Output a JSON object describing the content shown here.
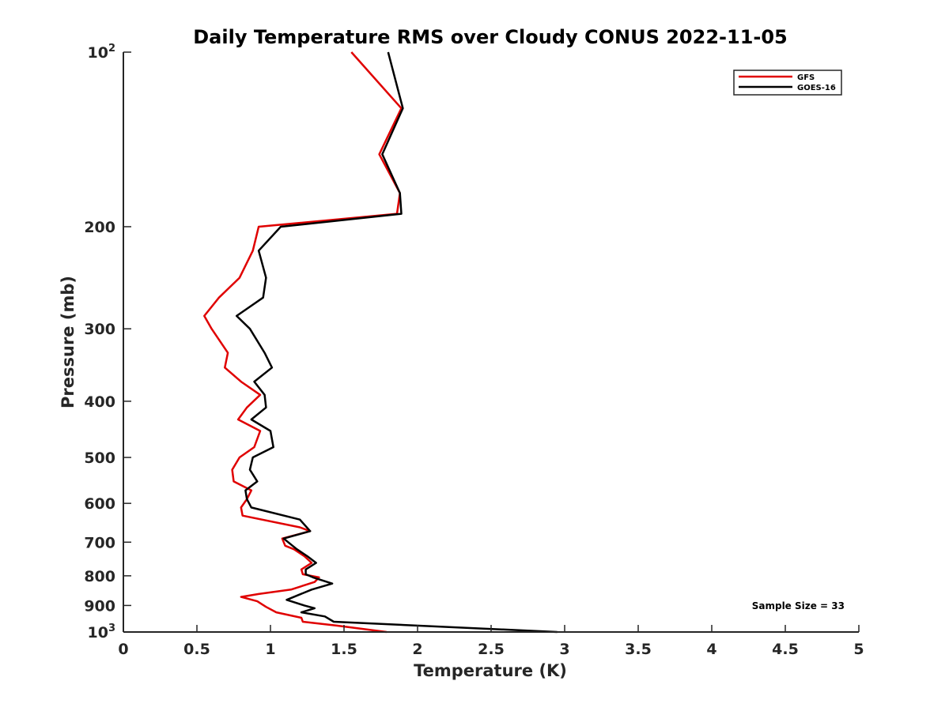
{
  "chart_data": {
    "type": "line",
    "title": "Daily Temperature RMS over Cloudy CONUS 2022-11-05",
    "xlabel": "Temperature (K)",
    "ylabel": "Pressure (mb)",
    "xlim": [
      0,
      5
    ],
    "ylim": [
      100,
      1000
    ],
    "y_scale": "log",
    "y_reversed": true,
    "grid": false,
    "legend_position": "top-right",
    "x_ticks": [
      0,
      0.5,
      1,
      1.5,
      2,
      2.5,
      3,
      3.5,
      4,
      4.5,
      5
    ],
    "x_tick_labels": [
      "0",
      "0.5",
      "1",
      "1.5",
      "2",
      "2.5",
      "3",
      "3.5",
      "4",
      "4.5",
      "5"
    ],
    "y_ticks": [
      {
        "value": 100,
        "base": "10",
        "exp": "2"
      },
      {
        "value": 200,
        "label": "200"
      },
      {
        "value": 300,
        "label": "300"
      },
      {
        "value": 400,
        "label": "400"
      },
      {
        "value": 500,
        "label": "500"
      },
      {
        "value": 600,
        "label": "600"
      },
      {
        "value": 700,
        "label": "700"
      },
      {
        "value": 800,
        "label": "800"
      },
      {
        "value": 900,
        "label": "900"
      },
      {
        "value": 1000,
        "base": "10",
        "exp": "3"
      }
    ],
    "annotation": "Sample Size = 33",
    "series": [
      {
        "name": "GFS",
        "color": "#e00000",
        "points": [
          [
            1.55,
            100
          ],
          [
            1.89,
            125
          ],
          [
            1.74,
            150
          ],
          [
            1.88,
            175
          ],
          [
            1.86,
            190
          ],
          [
            0.92,
            200
          ],
          [
            0.88,
            220
          ],
          [
            0.79,
            245
          ],
          [
            0.65,
            265
          ],
          [
            0.55,
            285
          ],
          [
            0.6,
            300
          ],
          [
            0.71,
            330
          ],
          [
            0.69,
            350
          ],
          [
            0.8,
            370
          ],
          [
            0.93,
            390
          ],
          [
            0.84,
            410
          ],
          [
            0.78,
            430
          ],
          [
            0.93,
            450
          ],
          [
            0.89,
            480
          ],
          [
            0.79,
            500
          ],
          [
            0.74,
            525
          ],
          [
            0.75,
            550
          ],
          [
            0.87,
            570
          ],
          [
            0.84,
            590
          ],
          [
            0.8,
            610
          ],
          [
            0.81,
            630
          ],
          [
            1.2,
            660
          ],
          [
            1.27,
            670
          ],
          [
            1.08,
            690
          ],
          [
            1.1,
            710
          ],
          [
            1.16,
            720
          ],
          [
            1.23,
            740
          ],
          [
            1.28,
            760
          ],
          [
            1.21,
            780
          ],
          [
            1.22,
            795
          ],
          [
            1.33,
            805
          ],
          [
            1.3,
            820
          ],
          [
            1.14,
            845
          ],
          [
            0.92,
            860
          ],
          [
            0.8,
            870
          ],
          [
            0.91,
            885
          ],
          [
            0.97,
            905
          ],
          [
            1.04,
            925
          ],
          [
            1.21,
            945
          ],
          [
            1.22,
            960
          ],
          [
            1.45,
            975
          ],
          [
            1.79,
            1000
          ]
        ]
      },
      {
        "name": "GOES-16",
        "color": "#000000",
        "points": [
          [
            1.8,
            100
          ],
          [
            1.9,
            125
          ],
          [
            1.76,
            150
          ],
          [
            1.88,
            175
          ],
          [
            1.89,
            190
          ],
          [
            1.07,
            200
          ],
          [
            0.92,
            220
          ],
          [
            0.97,
            245
          ],
          [
            0.95,
            265
          ],
          [
            0.77,
            285
          ],
          [
            0.86,
            300
          ],
          [
            0.96,
            330
          ],
          [
            1.01,
            350
          ],
          [
            0.89,
            370
          ],
          [
            0.96,
            390
          ],
          [
            0.97,
            410
          ],
          [
            0.87,
            430
          ],
          [
            1.0,
            450
          ],
          [
            1.02,
            480
          ],
          [
            0.88,
            500
          ],
          [
            0.86,
            525
          ],
          [
            0.91,
            550
          ],
          [
            0.83,
            570
          ],
          [
            0.84,
            590
          ],
          [
            0.87,
            610
          ],
          [
            1.2,
            640
          ],
          [
            1.27,
            670
          ],
          [
            1.09,
            690
          ],
          [
            1.15,
            710
          ],
          [
            1.18,
            720
          ],
          [
            1.25,
            740
          ],
          [
            1.31,
            760
          ],
          [
            1.24,
            780
          ],
          [
            1.24,
            795
          ],
          [
            1.29,
            805
          ],
          [
            1.42,
            825
          ],
          [
            1.28,
            845
          ],
          [
            1.11,
            880
          ],
          [
            1.23,
            900
          ],
          [
            1.3,
            910
          ],
          [
            1.21,
            925
          ],
          [
            1.37,
            940
          ],
          [
            1.43,
            960
          ],
          [
            2.95,
            1000
          ]
        ]
      }
    ]
  }
}
